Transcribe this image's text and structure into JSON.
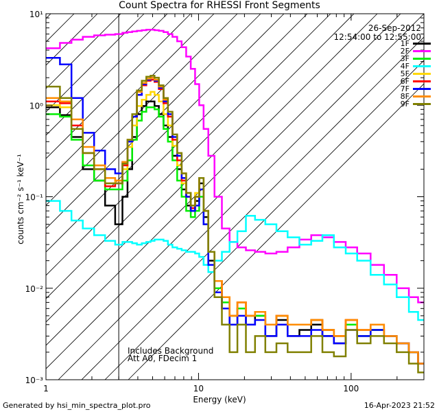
{
  "chart_data": {
    "type": "line",
    "title": "Count Spectra for RHESSI Front Segments",
    "xlabel": "Energy (keV)",
    "ylabel": "counts cm⁻² s⁻¹ keV⁻¹",
    "xscale": "log",
    "yscale": "log",
    "xlim": [
      1,
      300
    ],
    "ylim": [
      0.001,
      10
    ],
    "x_tick_labels": [
      "1",
      "10",
      "100"
    ],
    "y_tick_labels": [
      "10⁻³",
      "10⁻²",
      "10⁻¹",
      "10⁰",
      "10¹"
    ],
    "date": "26-Sep-2012",
    "time_range": "12:54:00 to 12:55:00",
    "annotations": [
      "Includes Background",
      "Att A0, FDecim 1"
    ],
    "hatched_region": [
      1,
      3
    ],
    "legend_position": "top-right",
    "energy_keV": [
      1.13,
      1.35,
      1.6,
      1.9,
      2.25,
      2.65,
      3.05,
      3.3,
      3.55,
      3.8,
      4.1,
      4.4,
      4.7,
      5.0,
      5.3,
      5.7,
      6.1,
      6.5,
      7.0,
      7.5,
      8.0,
      8.6,
      9.2,
      9.8,
      10.4,
      11.2,
      12.0,
      13.5,
      15.0,
      17.0,
      19.0,
      22.0,
      25.0,
      30.0,
      35.0,
      42.0,
      50.0,
      60.0,
      70.0,
      85.0,
      100.0,
      120.0,
      150.0,
      180.0,
      220.0,
      260.0,
      290.0
    ],
    "series": [
      {
        "name": "1F",
        "color": "#000000",
        "values": [
          0.95,
          0.78,
          0.45,
          0.2,
          0.15,
          0.08,
          0.05,
          0.1,
          0.2,
          0.45,
          0.8,
          0.98,
          1.1,
          1.1,
          0.98,
          0.8,
          0.6,
          0.45,
          0.28,
          0.2,
          0.12,
          0.08,
          0.07,
          0.09,
          0.14,
          0.06,
          0.02,
          0.01,
          0.006,
          0.004,
          0.006,
          0.004,
          0.005,
          0.003,
          0.0045,
          0.003,
          0.0035,
          0.004,
          0.003,
          0.0025,
          0.004,
          0.003,
          0.0035,
          0.003,
          0.0025,
          0.002,
          0.0015
        ]
      },
      {
        "name": "2F",
        "color": "#ff00ff",
        "values": [
          4.2,
          4.8,
          5.2,
          5.6,
          5.8,
          5.9,
          6.0,
          6.2,
          6.3,
          6.4,
          6.5,
          6.6,
          6.7,
          6.7,
          6.6,
          6.5,
          6.3,
          6.0,
          5.6,
          5.0,
          4.3,
          3.4,
          2.5,
          1.7,
          1.0,
          0.55,
          0.28,
          0.1,
          0.045,
          0.032,
          0.028,
          0.026,
          0.025,
          0.024,
          0.025,
          0.028,
          0.034,
          0.038,
          0.036,
          0.032,
          0.028,
          0.024,
          0.018,
          0.014,
          0.01,
          0.008,
          0.007
        ]
      },
      {
        "name": "3F",
        "color": "#00ee00",
        "values": [
          0.8,
          0.75,
          0.42,
          0.22,
          0.15,
          0.12,
          0.12,
          0.15,
          0.25,
          0.42,
          0.68,
          0.85,
          0.95,
          0.95,
          0.9,
          0.75,
          0.55,
          0.4,
          0.25,
          0.15,
          0.1,
          0.07,
          0.06,
          0.07,
          0.1,
          0.05,
          0.018,
          0.01,
          0.007,
          0.005,
          0.006,
          0.005,
          0.005,
          0.004,
          0.005,
          0.004,
          0.004,
          0.0045,
          0.0035,
          0.003,
          0.004,
          0.003,
          0.0035,
          0.003,
          0.0025,
          0.002,
          0.0015
        ]
      },
      {
        "name": "4F",
        "color": "#00ffff",
        "values": [
          0.09,
          0.07,
          0.055,
          0.045,
          0.038,
          0.033,
          0.03,
          0.032,
          0.032,
          0.031,
          0.03,
          0.031,
          0.032,
          0.033,
          0.034,
          0.034,
          0.033,
          0.03,
          0.028,
          0.027,
          0.026,
          0.025,
          0.025,
          0.024,
          0.022,
          0.018,
          0.015,
          0.02,
          0.025,
          0.032,
          0.042,
          0.062,
          0.056,
          0.05,
          0.042,
          0.036,
          0.03,
          0.033,
          0.038,
          0.028,
          0.024,
          0.02,
          0.014,
          0.011,
          0.008,
          0.0055,
          0.0045
        ]
      },
      {
        "name": "5F",
        "color": "#ffd700",
        "values": [
          1.0,
          0.95,
          0.6,
          0.3,
          0.22,
          0.14,
          0.15,
          0.2,
          0.35,
          0.6,
          0.98,
          1.15,
          1.3,
          1.4,
          1.3,
          1.1,
          0.8,
          0.6,
          0.36,
          0.22,
          0.14,
          0.1,
          0.08,
          0.11,
          0.16,
          0.07,
          0.025,
          0.012,
          0.008,
          0.005,
          0.007,
          0.005,
          0.0055,
          0.004,
          0.005,
          0.004,
          0.004,
          0.0045,
          0.0035,
          0.003,
          0.0045,
          0.0035,
          0.004,
          0.003,
          0.0025,
          0.002,
          0.0015
        ]
      },
      {
        "name": "6F",
        "color": "#ff0000",
        "values": [
          1.1,
          1.05,
          0.6,
          0.3,
          0.2,
          0.13,
          0.14,
          0.22,
          0.4,
          0.75,
          1.3,
          1.65,
          1.85,
          1.9,
          1.8,
          1.5,
          1.05,
          0.75,
          0.42,
          0.25,
          0.15,
          0.1,
          0.075,
          0.1,
          0.16,
          0.07,
          0.025,
          0.012,
          0.008,
          0.005,
          0.007,
          0.005,
          0.0055,
          0.004,
          0.005,
          0.004,
          0.004,
          0.0045,
          0.0035,
          0.003,
          0.0045,
          0.0035,
          0.004,
          0.003,
          0.0025,
          0.002,
          0.0015
        ]
      },
      {
        "name": "7F",
        "color": "#0000ff",
        "values": [
          3.3,
          2.8,
          1.2,
          0.5,
          0.32,
          0.2,
          0.18,
          0.24,
          0.4,
          0.75,
          1.3,
          1.7,
          1.9,
          2.0,
          1.85,
          1.55,
          1.1,
          0.8,
          0.45,
          0.28,
          0.16,
          0.1,
          0.07,
          0.08,
          0.12,
          0.05,
          0.018,
          0.009,
          0.006,
          0.004,
          0.005,
          0.004,
          0.0045,
          0.003,
          0.004,
          0.003,
          0.003,
          0.0035,
          0.003,
          0.0025,
          0.0035,
          0.003,
          0.0035,
          0.003,
          0.0025,
          0.002,
          0.0015
        ]
      },
      {
        "name": "8F",
        "color": "#ff8c00",
        "values": [
          1.2,
          1.1,
          0.7,
          0.35,
          0.22,
          0.16,
          0.15,
          0.24,
          0.42,
          0.8,
          1.4,
          1.75,
          1.95,
          2.0,
          1.9,
          1.6,
          1.15,
          0.85,
          0.48,
          0.3,
          0.18,
          0.11,
          0.08,
          0.1,
          0.16,
          0.07,
          0.025,
          0.012,
          0.008,
          0.005,
          0.007,
          0.005,
          0.0055,
          0.004,
          0.005,
          0.004,
          0.004,
          0.0045,
          0.0035,
          0.003,
          0.0045,
          0.0035,
          0.004,
          0.003,
          0.0025,
          0.002,
          0.0015
        ]
      },
      {
        "name": "9F",
        "color": "#808000",
        "values": [
          1.6,
          1.2,
          0.55,
          0.3,
          0.2,
          0.14,
          0.14,
          0.23,
          0.42,
          0.8,
          1.45,
          1.85,
          2.05,
          2.1,
          2.0,
          1.65,
          1.2,
          0.85,
          0.48,
          0.3,
          0.18,
          0.11,
          0.08,
          0.1,
          0.16,
          0.07,
          0.025,
          0.008,
          0.004,
          0.002,
          0.004,
          0.002,
          0.003,
          0.002,
          0.0025,
          0.002,
          0.002,
          0.003,
          0.002,
          0.0018,
          0.0035,
          0.0025,
          0.003,
          0.0025,
          0.002,
          0.0015,
          0.0012
        ]
      }
    ]
  },
  "footer": {
    "generated_by": "Generated by hsi_min_spectra_plot.pro",
    "timestamp": "16-Apr-2023 21:52"
  }
}
